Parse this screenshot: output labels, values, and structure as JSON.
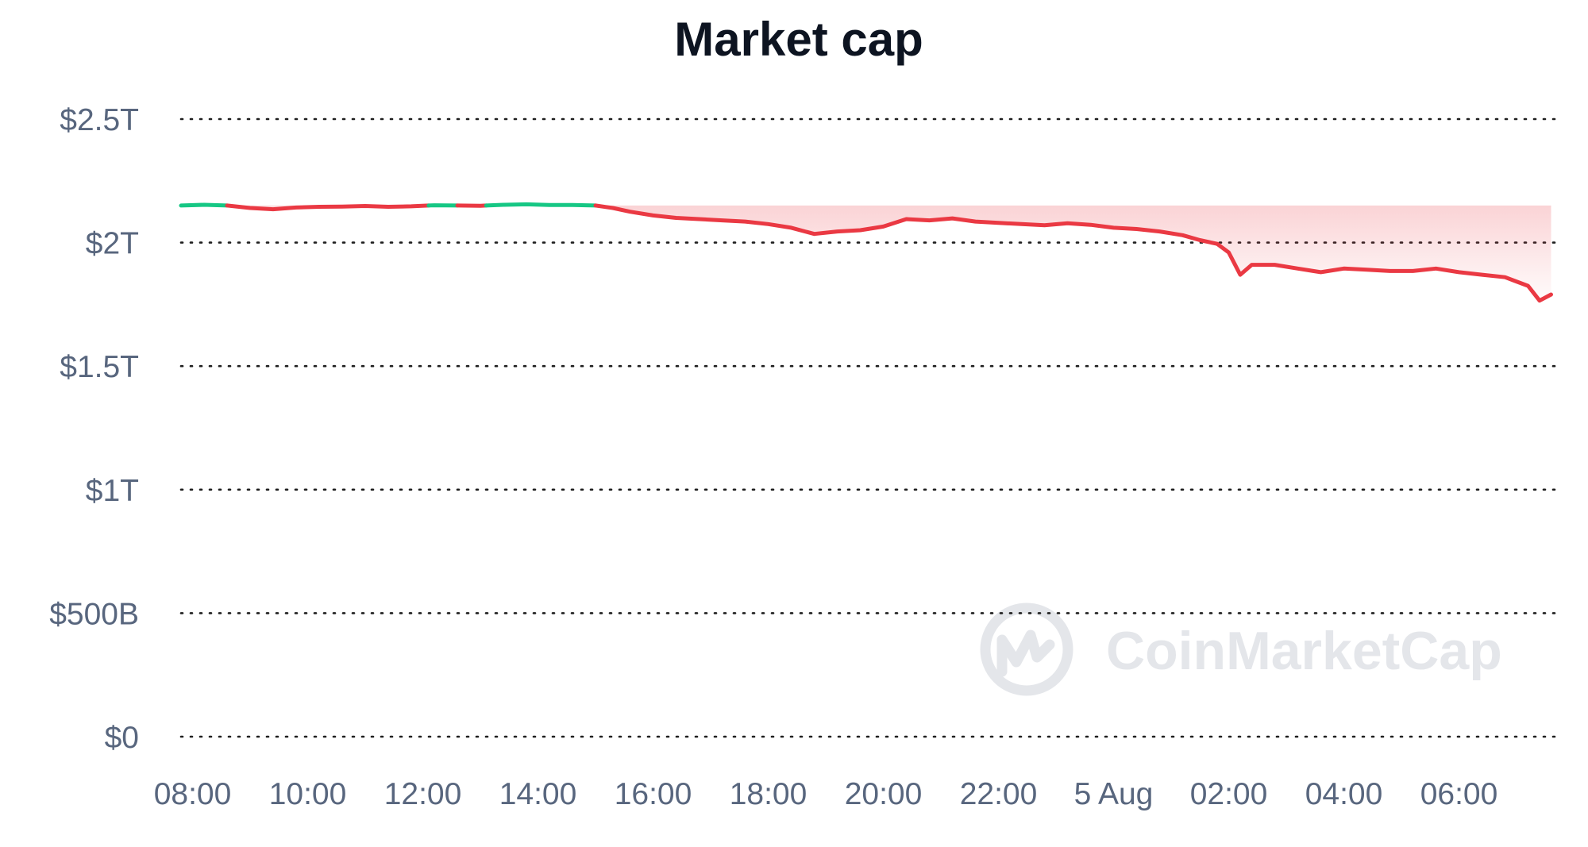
{
  "chart_data": {
    "type": "line",
    "title": "Market cap",
    "xlabel": "",
    "ylabel": "",
    "ylim": [
      0,
      2500000000000
    ],
    "grid": true,
    "y_ticks": [
      {
        "value": 0,
        "label": "$0"
      },
      {
        "value": 500000000000,
        "label": "$500B"
      },
      {
        "value": 1000000000000,
        "label": "$1T"
      },
      {
        "value": 1500000000000,
        "label": "$1.5T"
      },
      {
        "value": 2000000000000,
        "label": "$2T"
      },
      {
        "value": 2500000000000,
        "label": "$2.5T"
      }
    ],
    "x_ticks": [
      {
        "value": 8,
        "label": "08:00"
      },
      {
        "value": 10,
        "label": "10:00"
      },
      {
        "value": 12,
        "label": "12:00"
      },
      {
        "value": 14,
        "label": "14:00"
      },
      {
        "value": 16,
        "label": "16:00"
      },
      {
        "value": 18,
        "label": "18:00"
      },
      {
        "value": 20,
        "label": "20:00"
      },
      {
        "value": 22,
        "label": "22:00"
      },
      {
        "value": 24,
        "label": "5 Aug"
      },
      {
        "value": 26,
        "label": "02:00"
      },
      {
        "value": 28,
        "label": "04:00"
      },
      {
        "value": 30,
        "label": "06:00"
      }
    ],
    "xlim": [
      7.8,
      31.8
    ],
    "baseline": 2150000000000,
    "colors": {
      "above": "#16c784",
      "below": "#ea3943",
      "fill": "#ea3943"
    },
    "watermark": "CoinMarketCap",
    "x": [
      7.8,
      8.2,
      8.6,
      9.0,
      9.4,
      9.8,
      10.2,
      10.6,
      11.0,
      11.4,
      11.8,
      12.2,
      12.6,
      13.0,
      13.4,
      13.8,
      14.2,
      14.6,
      15.0,
      15.3,
      15.6,
      16.0,
      16.4,
      16.8,
      17.2,
      17.6,
      18.0,
      18.4,
      18.8,
      19.2,
      19.6,
      20.0,
      20.4,
      20.8,
      21.2,
      21.6,
      22.0,
      22.4,
      22.8,
      23.2,
      23.6,
      24.0,
      24.4,
      24.8,
      25.2,
      25.5,
      25.8,
      26.0,
      26.2,
      26.4,
      26.8,
      27.2,
      27.6,
      28.0,
      28.4,
      28.8,
      29.2,
      29.6,
      30.0,
      30.4,
      30.8,
      31.2,
      31.4,
      31.6
    ],
    "y": [
      2150000000000,
      2153000000000,
      2150000000000,
      2140000000000,
      2135000000000,
      2142000000000,
      2145000000000,
      2146000000000,
      2148000000000,
      2145000000000,
      2147000000000,
      2151000000000,
      2150000000000,
      2149000000000,
      2153000000000,
      2155000000000,
      2152000000000,
      2152000000000,
      2150000000000,
      2140000000000,
      2125000000000,
      2110000000000,
      2100000000000,
      2095000000000,
      2090000000000,
      2085000000000,
      2075000000000,
      2060000000000,
      2035000000000,
      2045000000000,
      2050000000000,
      2065000000000,
      2095000000000,
      2090000000000,
      2098000000000,
      2085000000000,
      2080000000000,
      2075000000000,
      2070000000000,
      2078000000000,
      2072000000000,
      2060000000000,
      2055000000000,
      2045000000000,
      2030000000000,
      2010000000000,
      1995000000000,
      1960000000000,
      1870000000000,
      1910000000000,
      1910000000000,
      1895000000000,
      1880000000000,
      1895000000000,
      1890000000000,
      1885000000000,
      1885000000000,
      1895000000000,
      1880000000000,
      1870000000000,
      1860000000000,
      1825000000000,
      1765000000000,
      1790000000000
    ]
  }
}
